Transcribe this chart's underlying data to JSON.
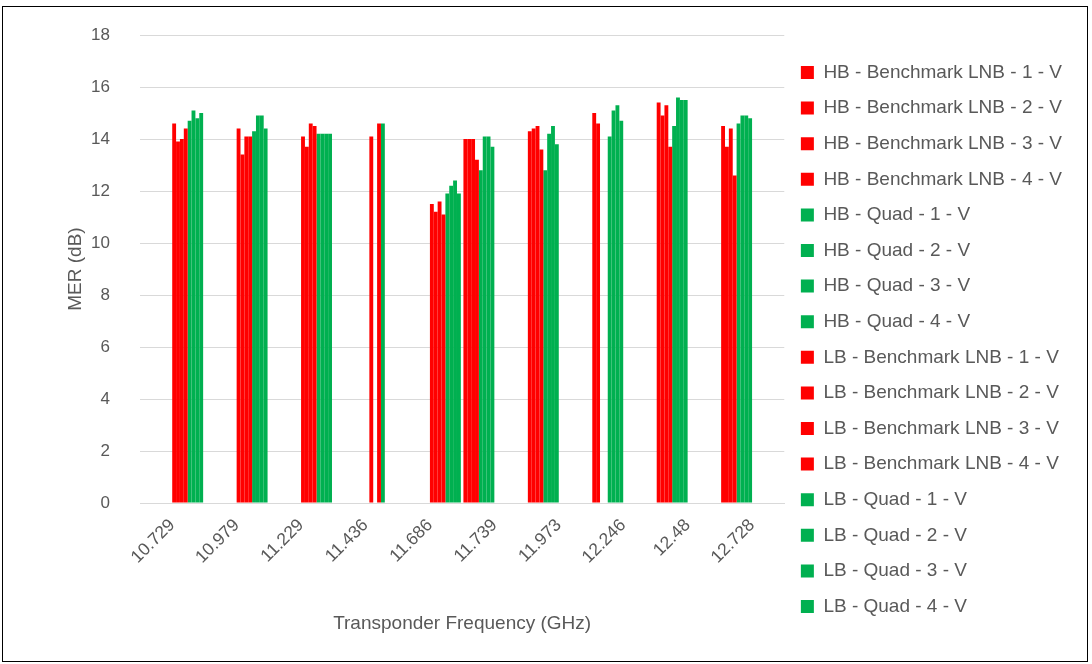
{
  "chart_data": {
    "type": "bar",
    "xlabel": "Transponder Frequency (GHz)",
    "ylabel": "MER (dB)",
    "categories": [
      "10.729",
      "10.979",
      "11.229",
      "11.436",
      "11.686",
      "11.739",
      "11.973",
      "12.246",
      "12.48",
      "12.728"
    ],
    "ylim": [
      0,
      18
    ],
    "yticks": [
      0,
      2,
      4,
      6,
      8,
      10,
      12,
      14,
      16,
      18
    ],
    "grid": "y",
    "legend": "right",
    "series": [
      {
        "name": "HB - Benchmark LNB - 1 - V",
        "color": "#ff0000",
        "values": [
          null,
          null,
          null,
          null,
          null,
          14.0,
          14.3,
          15.0,
          15.4,
          14.5
        ]
      },
      {
        "name": "HB - Benchmark LNB - 2 - V",
        "color": "#ff0000",
        "values": [
          null,
          null,
          null,
          null,
          null,
          14.0,
          14.4,
          14.6,
          14.9,
          13.7
        ]
      },
      {
        "name": "HB - Benchmark LNB - 3 - V",
        "color": "#ff0000",
        "values": [
          null,
          null,
          null,
          null,
          null,
          14.0,
          14.5,
          null,
          15.3,
          14.4
        ]
      },
      {
        "name": "HB - Benchmark LNB - 4 - V",
        "color": "#ff0000",
        "values": [
          null,
          null,
          null,
          null,
          null,
          13.2,
          13.6,
          null,
          13.7,
          12.6
        ]
      },
      {
        "name": "HB - Quad - 1 - V",
        "color": "#00b050",
        "values": [
          null,
          null,
          null,
          null,
          null,
          12.8,
          12.8,
          14.1,
          14.5,
          14.6
        ]
      },
      {
        "name": "HB - Quad - 2 - V",
        "color": "#00b050",
        "values": [
          null,
          null,
          null,
          null,
          null,
          14.1,
          14.2,
          15.1,
          15.6,
          14.9
        ]
      },
      {
        "name": "HB - Quad - 3 - V",
        "color": "#00b050",
        "values": [
          null,
          null,
          null,
          null,
          null,
          14.1,
          14.5,
          15.3,
          15.5,
          14.9
        ]
      },
      {
        "name": "HB - Quad - 4 - V",
        "color": "#00b050",
        "values": [
          null,
          null,
          null,
          null,
          null,
          13.7,
          13.8,
          14.7,
          15.5,
          14.8
        ]
      },
      {
        "name": "LB - Benchmark LNB - 1 - V",
        "color": "#ff0000",
        "values": [
          14.6,
          14.4,
          14.1,
          null,
          11.5,
          null,
          null,
          null,
          null,
          null
        ]
      },
      {
        "name": "LB - Benchmark LNB - 2 - V",
        "color": "#ff0000",
        "values": [
          13.9,
          13.4,
          13.7,
          14.1,
          11.2,
          null,
          null,
          null,
          null,
          null
        ]
      },
      {
        "name": "LB - Benchmark LNB - 3 - V",
        "color": "#ff0000",
        "values": [
          14.0,
          14.1,
          14.6,
          null,
          11.6,
          null,
          null,
          null,
          null,
          null
        ]
      },
      {
        "name": "LB - Benchmark LNB - 4 - V",
        "color": "#ff0000",
        "values": [
          14.4,
          14.1,
          14.5,
          14.6,
          11.1,
          null,
          null,
          null,
          null,
          null
        ]
      },
      {
        "name": "LB - Quad - 1 - V",
        "color": "#00b050",
        "values": [
          14.7,
          14.3,
          14.2,
          14.6,
          11.9,
          null,
          null,
          null,
          null,
          null
        ]
      },
      {
        "name": "LB - Quad - 2 - V",
        "color": "#00b050",
        "values": [
          15.1,
          14.9,
          14.2,
          null,
          12.2,
          null,
          null,
          null,
          null,
          null
        ]
      },
      {
        "name": "LB - Quad - 3 - V",
        "color": "#00b050",
        "values": [
          14.8,
          14.9,
          14.2,
          null,
          12.4,
          null,
          null,
          null,
          null,
          null
        ]
      },
      {
        "name": "LB - Quad - 4 - V",
        "color": "#00b050",
        "values": [
          15.0,
          14.4,
          14.2,
          null,
          11.9,
          null,
          null,
          null,
          null,
          null
        ]
      }
    ]
  }
}
